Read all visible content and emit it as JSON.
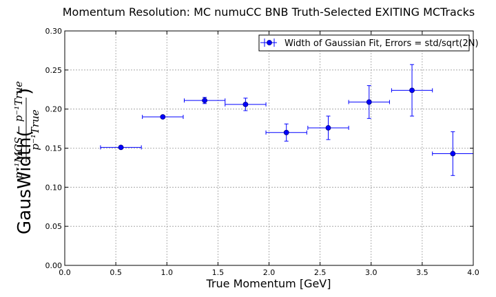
{
  "chart_data": {
    "type": "scatter",
    "title": "Momentum Resolution: MC numuCC BNB Truth-Selected EXITING MCTracks",
    "xlabel": "True Momentum [GeV]",
    "ylabel_prefix": "GausWidth(",
    "ylabel_numerator": "p⁻¹MCS − p⁻¹True",
    "ylabel_denominator": "p⁻¹True",
    "ylabel_suffix": ")",
    "xlim": [
      0.0,
      4.0
    ],
    "ylim": [
      0.0,
      0.3
    ],
    "xticks": [
      "0.0",
      "0.5",
      "1.0",
      "1.5",
      "2.0",
      "2.5",
      "3.0",
      "3.5",
      "4.0"
    ],
    "yticks": [
      "0.00",
      "0.05",
      "0.10",
      "0.15",
      "0.20",
      "0.25",
      "0.30"
    ],
    "grid": true,
    "legend_position": "top-right",
    "color": "#0000ff",
    "series": [
      {
        "name": "Width of Gaussian Fit, Errors = std/sqrt(2N)",
        "points": [
          {
            "x": 0.55,
            "y": 0.151,
            "xerr": 0.2,
            "yerr": 0.001
          },
          {
            "x": 0.96,
            "y": 0.19,
            "xerr": 0.2,
            "yerr": 0.001
          },
          {
            "x": 1.37,
            "y": 0.211,
            "xerr": 0.2,
            "yerr": 0.004
          },
          {
            "x": 1.77,
            "y": 0.206,
            "xerr": 0.2,
            "yerr": 0.008
          },
          {
            "x": 2.17,
            "y": 0.17,
            "xerr": 0.2,
            "yerr": 0.011
          },
          {
            "x": 2.58,
            "y": 0.176,
            "xerr": 0.2,
            "yerr": 0.015
          },
          {
            "x": 2.98,
            "y": 0.209,
            "xerr": 0.2,
            "yerr": 0.021
          },
          {
            "x": 3.4,
            "y": 0.224,
            "xerr": 0.2,
            "yerr": 0.033
          },
          {
            "x": 3.8,
            "y": 0.143,
            "xerr": 0.2,
            "yerr": 0.028
          }
        ]
      }
    ]
  }
}
